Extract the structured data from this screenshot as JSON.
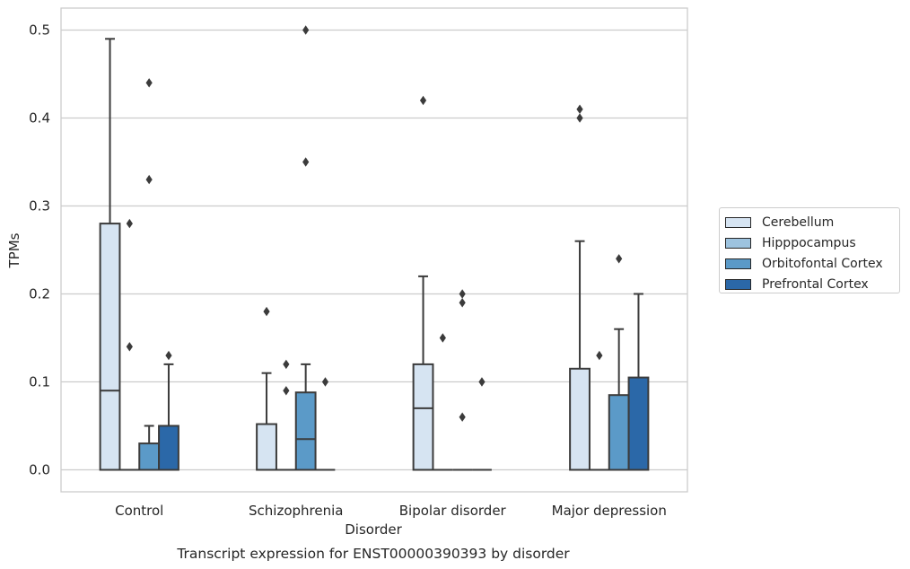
{
  "chart_data": {
    "type": "box",
    "title": "Transcript expression for ENST00000390393 by disorder",
    "xlabel": "Disorder",
    "ylabel": "TPMs",
    "ylim": [
      -0.025,
      0.525
    ],
    "yticks": [
      "0.0",
      "0.1",
      "0.2",
      "0.3",
      "0.4",
      "0.5"
    ],
    "grid": true,
    "legend_position": "right",
    "categories": [
      "Control",
      "Schizophrenia",
      "Bipolar disorder",
      "Major depression"
    ],
    "series": [
      {
        "name": "Cerebellum",
        "color": "#d6e4f2",
        "boxes": [
          {
            "min": 0,
            "q1": 0,
            "median": 0.09,
            "q3": 0.28,
            "max": 0.49,
            "outliers": []
          },
          {
            "min": 0,
            "q1": 0,
            "median": 0,
            "q3": 0.052,
            "max": 0.11,
            "outliers": [
              0.18
            ]
          },
          {
            "min": 0,
            "q1": 0,
            "median": 0.07,
            "q3": 0.12,
            "max": 0.22,
            "outliers": [
              0.42
            ]
          },
          {
            "min": 0,
            "q1": 0,
            "median": 0,
            "q3": 0.115,
            "max": 0.26,
            "outliers": [
              0.4,
              0.41
            ]
          }
        ]
      },
      {
        "name": "Hipppocampus",
        "color": "#9dc3df",
        "boxes": [
          {
            "min": 0,
            "q1": 0,
            "median": 0,
            "q3": 0,
            "max": 0,
            "outliers": [
              0.14,
              0.28
            ]
          },
          {
            "min": 0,
            "q1": 0,
            "median": 0,
            "q3": 0,
            "max": 0,
            "outliers": [
              0.09,
              0.12
            ]
          },
          {
            "min": 0,
            "q1": 0,
            "median": 0,
            "q3": 0,
            "max": 0,
            "outliers": [
              0.15
            ]
          },
          {
            "min": 0,
            "q1": 0,
            "median": 0,
            "q3": 0,
            "max": 0,
            "outliers": [
              0.13
            ]
          }
        ]
      },
      {
        "name": "Orbitofontal Cortex",
        "color": "#5b9ac8",
        "boxes": [
          {
            "min": 0,
            "q1": 0,
            "median": 0,
            "q3": 0.03,
            "max": 0.05,
            "outliers": [
              0.33,
              0.44
            ]
          },
          {
            "min": 0,
            "q1": 0,
            "median": 0.035,
            "q3": 0.088,
            "max": 0.12,
            "outliers": [
              0.35,
              0.5
            ]
          },
          {
            "min": 0,
            "q1": 0,
            "median": 0,
            "q3": 0,
            "max": 0,
            "outliers": [
              0.06,
              0.19,
              0.2
            ]
          },
          {
            "min": 0,
            "q1": 0,
            "median": 0,
            "q3": 0.085,
            "max": 0.16,
            "outliers": [
              0.24
            ]
          }
        ]
      },
      {
        "name": "Prefrontal Cortex",
        "color": "#2b68a8",
        "boxes": [
          {
            "min": 0,
            "q1": 0,
            "median": 0,
            "q3": 0.05,
            "max": 0.12,
            "outliers": [
              0.13
            ]
          },
          {
            "min": 0,
            "q1": 0,
            "median": 0,
            "q3": 0,
            "max": 0,
            "outliers": [
              0.1
            ]
          },
          {
            "min": 0,
            "q1": 0,
            "median": 0,
            "q3": 0,
            "max": 0,
            "outliers": [
              0.1
            ]
          },
          {
            "min": 0,
            "q1": 0,
            "median": 0,
            "q3": 0.105,
            "max": 0.2,
            "outliers": []
          }
        ]
      }
    ]
  }
}
